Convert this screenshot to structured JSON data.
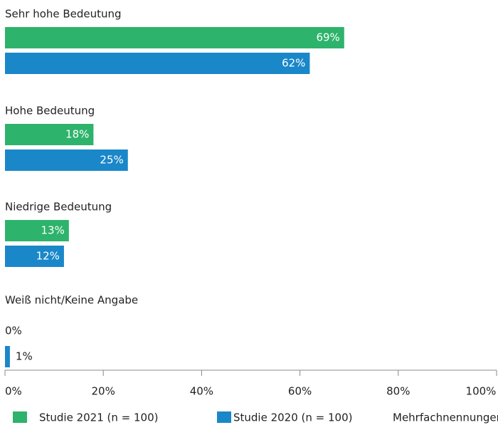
{
  "chart_data": {
    "type": "barh",
    "categories": [
      "Sehr hohe Bedeutung",
      "Hohe Bedeutung",
      "Niedrige Bedeutung",
      "Weiß nicht/Keine Angabe"
    ],
    "series": [
      {
        "name": "Studie 2021 (n = 100)",
        "color": "#2db36b",
        "values": [
          69,
          18,
          13,
          0
        ],
        "value_labels": [
          "69%",
          "18%",
          "13%",
          "0%"
        ]
      },
      {
        "name": "Studie 2020 (n = 100)",
        "color": "#1a87c9",
        "values": [
          62,
          25,
          12,
          1
        ],
        "value_labels": [
          "62%",
          "25%",
          "12%",
          "1%"
        ]
      }
    ],
    "xlim": [
      0,
      100
    ],
    "xticks": [
      {
        "value": 0,
        "label": "0%"
      },
      {
        "value": 20,
        "label": "20%"
      },
      {
        "value": 40,
        "label": "40%"
      },
      {
        "value": 60,
        "label": "60%"
      },
      {
        "value": 80,
        "label": "80%"
      },
      {
        "value": 100,
        "label": "100%"
      }
    ],
    "note": "Mehrfachnennungen möglich"
  }
}
